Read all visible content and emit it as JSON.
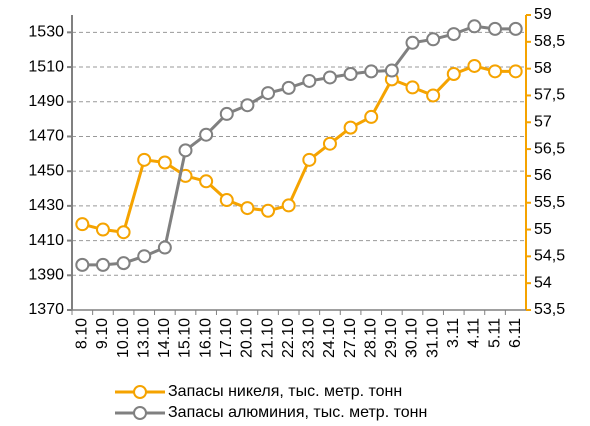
{
  "chart_data": {
    "type": "line",
    "categories": [
      "8.10",
      "9.10",
      "10.10",
      "13.10",
      "14.10",
      "15.10",
      "16.10",
      "17.10",
      "20.10",
      "21.10",
      "22.10",
      "23.10",
      "24.10",
      "27.10",
      "28.10",
      "29.10",
      "30.10",
      "31.10",
      "3.11",
      "4.11",
      "5.11",
      "6.11"
    ],
    "series": [
      {
        "name": "Запасы никеля, тыс. метр. тонн",
        "color": "#f5a300",
        "axis": "y2",
        "values": [
          55.1,
          55.0,
          54.95,
          56.3,
          56.25,
          56.0,
          55.9,
          55.55,
          55.4,
          55.35,
          55.45,
          56.3,
          56.6,
          56.9,
          57.1,
          57.8,
          57.65,
          57.5,
          57.9,
          58.05,
          57.95,
          57.95
        ]
      },
      {
        "name": "Запасы алюминия, тыс. метр. тонн",
        "color": "#808080",
        "values": [
          1396,
          1396,
          1397,
          1401,
          1406,
          1462,
          1471,
          1483,
          1488,
          1495,
          1498,
          1502,
          1504,
          1506,
          1507.5,
          1508,
          1524,
          1526,
          1529,
          1533.5,
          1532,
          1532
        ]
      }
    ],
    "ylim": [
      1370,
      1540
    ],
    "yticks": [
      1370,
      1390,
      1410,
      1430,
      1450,
      1470,
      1490,
      1510,
      1530
    ],
    "y2lim": [
      53.5,
      59
    ],
    "y2ticks": [
      {
        "value": 53.5,
        "label": "53,5"
      },
      54,
      {
        "value": 54.5,
        "label": "54,5"
      },
      55,
      {
        "value": 55.5,
        "label": "55,5"
      },
      56,
      {
        "value": 56.5,
        "label": "56,5"
      },
      57,
      {
        "value": 57.5,
        "label": "57,5"
      },
      58,
      {
        "value": 58.5,
        "label": "58,5"
      },
      59
    ],
    "grid": true,
    "legend": "bottom"
  }
}
